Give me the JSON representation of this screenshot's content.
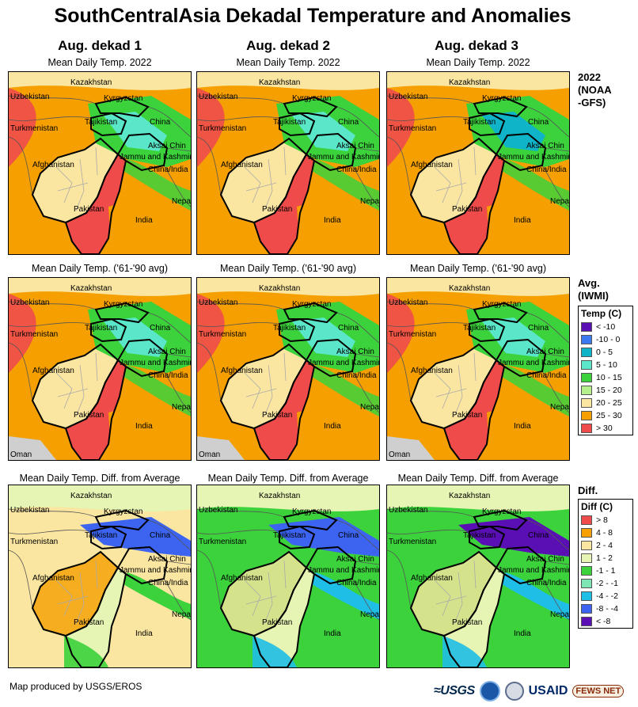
{
  "title": "SouthCentralAsia Dekadal Temperature and Anomalies",
  "columns": [
    "Aug. dekad 1",
    "Aug. dekad 2",
    "Aug. dekad 3"
  ],
  "rows": [
    {
      "subtitle": "Mean Daily Temp. 2022",
      "label": "2022\n(NOAA\n-GFS)",
      "style": "cur"
    },
    {
      "subtitle": "Mean Daily Temp. ('61-'90 avg)",
      "label": "Avg.\n(IWMI)",
      "style": "avg"
    },
    {
      "subtitle": "Mean Daily Temp. Diff. from Average",
      "label": "Diff.",
      "style": "diff"
    }
  ],
  "map_labels": {
    "kazakhstan": "Kazakhstan",
    "uzbekistan": "Uzbekistan",
    "kyrgyzstan": "Kyrgyzstan",
    "tajikistan": "Tajikistan",
    "china": "China",
    "turkmenistan": "Turkmenistan",
    "aksai_chin": "Aksai Chin",
    "jammu_kashmir": "Jammu and Kashmir",
    "china_india": "China/India",
    "afghanistan": "Afghanistan",
    "pakistan": "Pakistan",
    "india": "India",
    "nepal": "Nepal",
    "oman": "Oman"
  },
  "legend_temp": {
    "title": "Temp (C)",
    "items": [
      {
        "label": "< -10",
        "color": "#5a0fb4"
      },
      {
        "label": "-10 - 0",
        "color": "#3c78f0"
      },
      {
        "label": "0 - 5",
        "color": "#0fb4c8"
      },
      {
        "label": "5 - 10",
        "color": "#5ae6c8"
      },
      {
        "label": "10 - 15",
        "color": "#3cd23c"
      },
      {
        "label": "15 - 20",
        "color": "#b4f08c"
      },
      {
        "label": "20 - 25",
        "color": "#fae6a0"
      },
      {
        "label": "25 - 30",
        "color": "#f5a000"
      },
      {
        "label": "> 30",
        "color": "#f04b4b"
      }
    ]
  },
  "legend_diff": {
    "title": "Diff (C)",
    "items": [
      {
        "label": "> 8",
        "color": "#f04b4b"
      },
      {
        "label": "4 - 8",
        "color": "#f5a000"
      },
      {
        "label": "2 - 4",
        "color": "#fae6a0"
      },
      {
        "label": "1 - 2",
        "color": "#e6f5b4"
      },
      {
        "label": "-1 - 1",
        "color": "#3cd23c"
      },
      {
        "label": "-2 - -1",
        "color": "#7de6b4"
      },
      {
        "label": "-4 - -2",
        "color": "#1ebee6"
      },
      {
        "label": "-8 - -4",
        "color": "#3c64f0"
      },
      {
        "label": "< -8",
        "color": "#5a0fb4"
      }
    ]
  },
  "credit": "Map produced by USGS/EROS",
  "logos": {
    "usgs": "≈USGS",
    "usaid": "USAID",
    "fews": "FEWS NET"
  }
}
